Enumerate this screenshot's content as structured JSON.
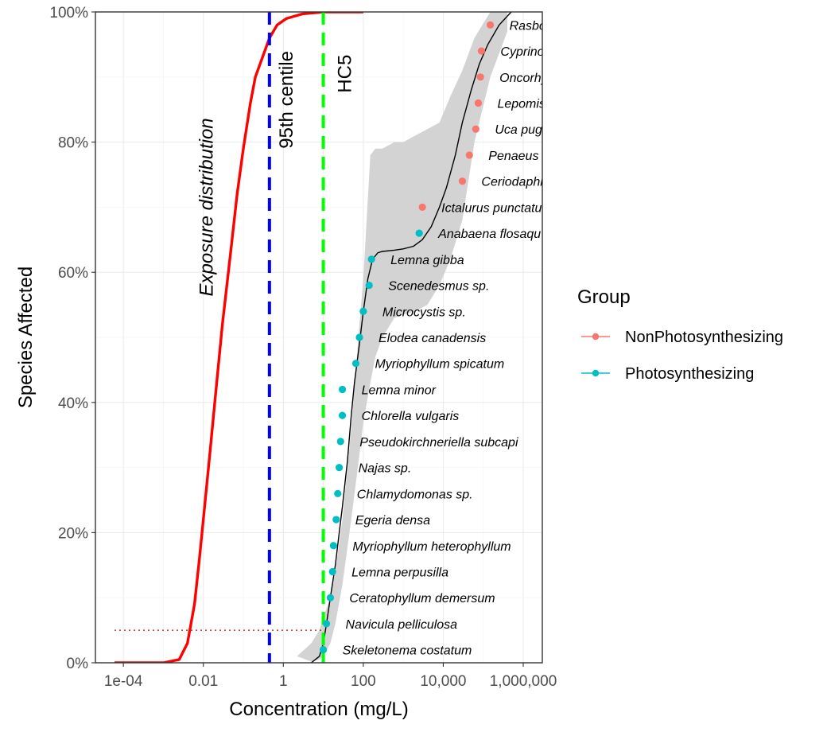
{
  "chart_data": {
    "type": "line",
    "xlabel": "Concentration (mg/L)",
    "ylabel": "Species Affected",
    "x_scale": "log10",
    "xlim": [
      2e-05,
      3000000
    ],
    "ylim": [
      0,
      1
    ],
    "x_ticks": [
      0.0001,
      0.01,
      1,
      100,
      10000,
      1000000
    ],
    "x_tick_labels": [
      "1e-04",
      "0.01",
      "1",
      "100",
      "10,000",
      "1,000,000"
    ],
    "y_ticks": [
      0,
      0.2,
      0.4,
      0.6,
      0.8,
      1.0
    ],
    "y_tick_labels": [
      "0%",
      "20%",
      "40%",
      "60%",
      "80%",
      "100%"
    ],
    "grid": true,
    "legend": {
      "title": "Group",
      "position": "right",
      "entries": [
        {
          "label": "NonPhotosynthesizing",
          "color": "#F8766D"
        },
        {
          "label": "Photosynthesizing",
          "color": "#00BFC4"
        }
      ]
    },
    "annotations": {
      "exposure_label": "Exposure distribution",
      "centile_label": "95th centile",
      "hc5_label": "HC5"
    },
    "reference_lines": {
      "centile_95_x": 0.45,
      "hc5_x": 10,
      "hc5_y": 0.05,
      "centile_color": "#0000FF",
      "hc5_color": "#00FF00"
    },
    "exposure_curve": {
      "name": "Exposure distribution",
      "color": "#FF0000",
      "x": [
        6e-05,
        0.001,
        0.0025,
        0.004,
        0.006,
        0.008,
        0.01,
        0.015,
        0.02,
        0.03,
        0.05,
        0.07,
        0.1,
        0.15,
        0.2,
        0.3,
        0.45,
        0.7,
        1.2,
        3,
        10,
        100
      ],
      "y": [
        0,
        0,
        0.005,
        0.03,
        0.09,
        0.16,
        0.22,
        0.33,
        0.41,
        0.52,
        0.64,
        0.72,
        0.79,
        0.86,
        0.9,
        0.93,
        0.96,
        0.98,
        0.99,
        0.997,
        1.0,
        1.0
      ]
    },
    "fitted_curve": {
      "color": "#000000",
      "x": [
        5,
        8,
        10,
        12,
        15,
        20,
        25,
        30,
        40,
        50,
        60,
        80,
        100,
        130,
        170,
        230,
        300,
        600,
        1000,
        1800,
        3000,
        5000,
        8000,
        12000,
        20000,
        30000,
        50000,
        80000,
        130000,
        250000,
        500000
      ],
      "y": [
        0,
        0.01,
        0.03,
        0.06,
        0.1,
        0.15,
        0.2,
        0.24,
        0.31,
        0.38,
        0.43,
        0.49,
        0.54,
        0.59,
        0.62,
        0.63,
        0.632,
        0.634,
        0.636,
        0.64,
        0.65,
        0.67,
        0.7,
        0.73,
        0.78,
        0.83,
        0.88,
        0.92,
        0.95,
        0.98,
        1.0
      ]
    },
    "confidence_band": {
      "color": "#D3D3D3",
      "x": [
        2.2,
        5,
        8,
        10,
        15,
        20,
        30,
        50,
        80,
        100,
        150,
        200,
        300,
        600,
        1000,
        2000,
        4000,
        8000,
        15000,
        30000,
        60000,
        150000,
        400000
      ],
      "lower": [
        0.01,
        0.002,
        0.005,
        0.01,
        0.03,
        0.06,
        0.12,
        0.22,
        0.32,
        0.37,
        0.43,
        0.47,
        0.5,
        0.53,
        0.535,
        0.54,
        0.55,
        0.58,
        0.62,
        0.68,
        0.8,
        0.9,
        0.97
      ],
      "upper": [
        0.01,
        0.03,
        0.05,
        0.07,
        0.1,
        0.14,
        0.22,
        0.36,
        0.52,
        0.59,
        0.78,
        0.79,
        0.79,
        0.8,
        0.8,
        0.81,
        0.82,
        0.83,
        0.87,
        0.91,
        0.96,
        1.0,
        1.0
      ]
    },
    "series": [
      {
        "name": "NonPhotosynthesizing",
        "color": "#F8766D",
        "points": [
          {
            "species": "Rasbora",
            "x": 150000,
            "y": 0.98
          },
          {
            "species": "Cyprinod",
            "x": 90000,
            "y": 0.94
          },
          {
            "species": "Oncorhyn",
            "x": 85000,
            "y": 0.9
          },
          {
            "species": "Lepomis",
            "x": 75000,
            "y": 0.86
          },
          {
            "species": "Uca pugil",
            "x": 65000,
            "y": 0.82
          },
          {
            "species": "Penaeus d",
            "x": 45000,
            "y": 0.78
          },
          {
            "species": "Ceriodaphn",
            "x": 30000,
            "y": 0.74
          },
          {
            "species": "Ictalurus punctatu",
            "x": 3000,
            "y": 0.7
          }
        ]
      },
      {
        "name": "Photosynthesizing",
        "color": "#00BFC4",
        "points": [
          {
            "species": "Anabaena flosaqu",
            "x": 2500,
            "y": 0.66
          },
          {
            "species": "Lemna gibba",
            "x": 160,
            "y": 0.62
          },
          {
            "species": "Scenedesmus sp.",
            "x": 140,
            "y": 0.58
          },
          {
            "species": "Microcystis sp.",
            "x": 100,
            "y": 0.54
          },
          {
            "species": "Elodea canadensis",
            "x": 80,
            "y": 0.5
          },
          {
            "species": "Myriophyllum spicatum",
            "x": 65,
            "y": 0.46
          },
          {
            "species": "Lemna minor",
            "x": 30,
            "y": 0.42
          },
          {
            "species": "Chlorella vulgaris",
            "x": 30,
            "y": 0.38
          },
          {
            "species": "Pseudokirchneriella subcapi",
            "x": 27,
            "y": 0.34
          },
          {
            "species": "Najas sp.",
            "x": 25,
            "y": 0.3
          },
          {
            "species": "Chlamydomonas sp.",
            "x": 23,
            "y": 0.26
          },
          {
            "species": "Egeria densa",
            "x": 21,
            "y": 0.22
          },
          {
            "species": "Myriophyllum heterophyllum",
            "x": 18,
            "y": 0.18
          },
          {
            "species": "Lemna perpusilla",
            "x": 17,
            "y": 0.14
          },
          {
            "species": "Ceratophyllum demersum",
            "x": 15,
            "y": 0.1
          },
          {
            "species": "Navicula pelliculosa",
            "x": 12,
            "y": 0.06
          },
          {
            "species": "Skeletonema costatum",
            "x": 10,
            "y": 0.02
          }
        ]
      }
    ]
  }
}
